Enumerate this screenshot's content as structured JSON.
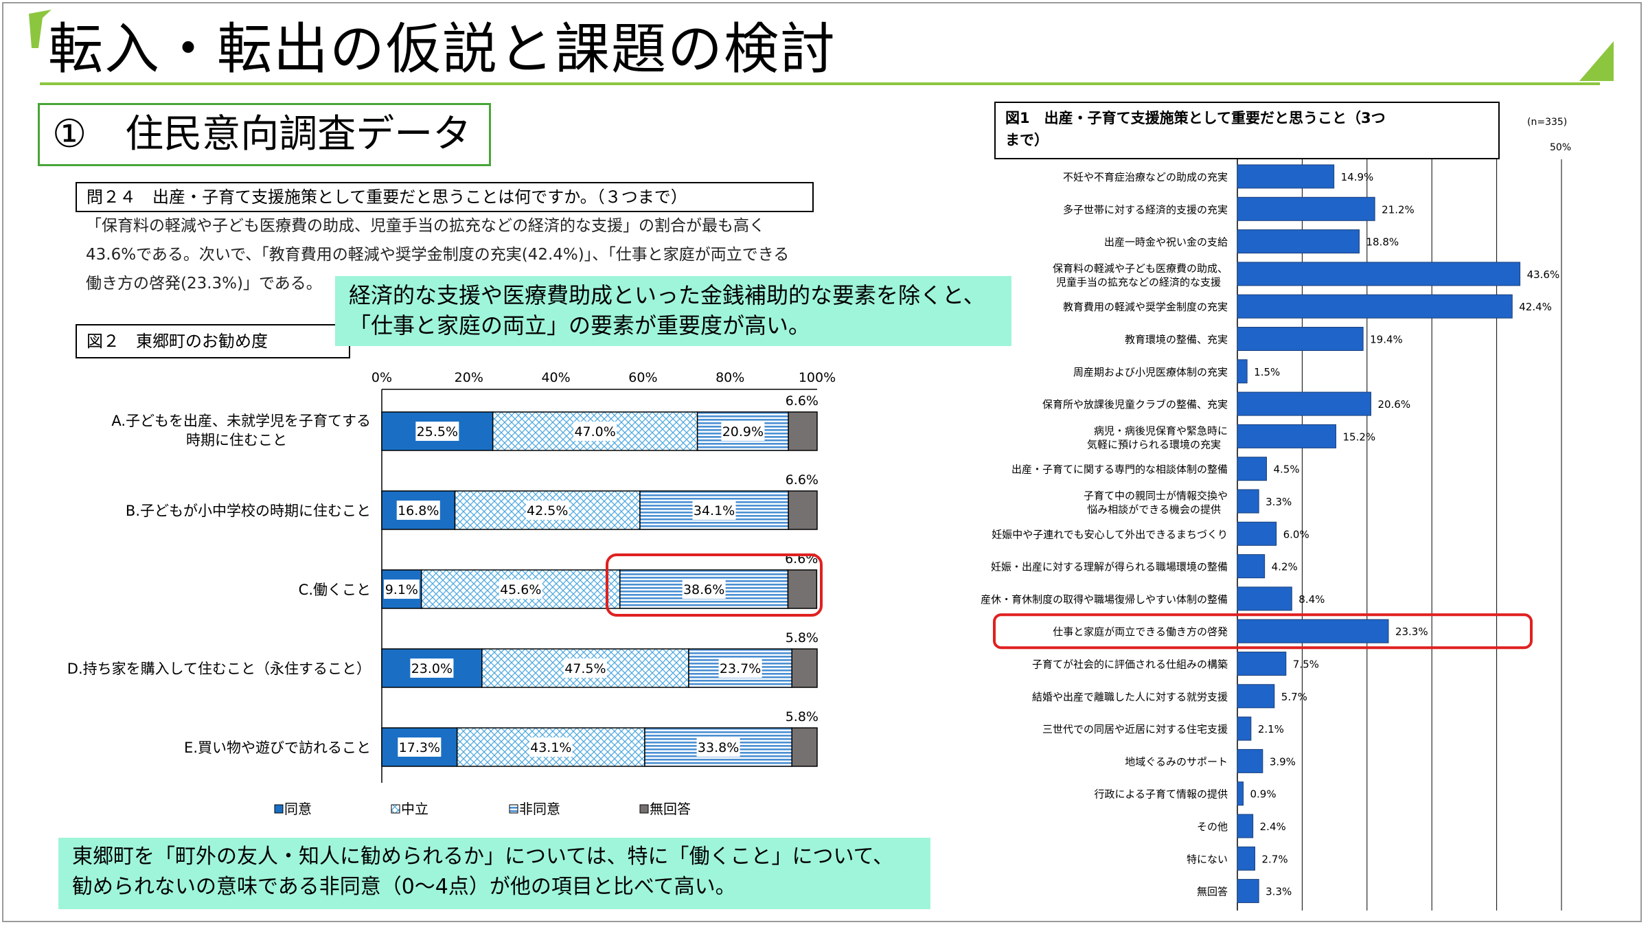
{
  "slide": {
    "title": "転入・転出の仮説と課題の検討",
    "subtitle": "①　住民意向調査データ",
    "question": "問２４　出産・子育て支援施策として重要だと思うことは何ですか。（３つまで）",
    "body_lines": [
      "「保育料の軽減や子ども医療費の助成、児童手当の拡充などの経済的な支援」の割合が最も高く",
      "43.6%である。次いで、「教育費用の軽減や奨学金制度の充実(42.4%)」、「仕事と家庭が両立できる",
      "働き方の啓発(23.3%)」である。"
    ],
    "callout1_lines": [
      "経済的な支援や医療費助成といった金銭補助的な要素を除くと、",
      "「仕事と家庭の両立」の要素が重要度が高い。"
    ],
    "callout2_lines": [
      "東郷町を「町外の友人・知人に勧められるか」については、特に「働くこと」について、",
      "勧められないの意味である非同意（0～4点）が他の項目と比べて高い。"
    ],
    "fig2_title": "図２　東郷町のお勧め度",
    "fig1_title_lines": [
      "図1　出産・子育て支援施策として重要だと思うこと（3つ",
      "まで）"
    ],
    "n_label": "(n=335)",
    "axis_max_label": "50%"
  },
  "colors": {
    "agree": "#1a6fc4",
    "neutral": "#9fd3f0",
    "disagree": "#5b9bd5",
    "no_answer": "#767171",
    "highlight": "#e02020",
    "bar_fill": "#1f64c8",
    "callout_bg": "#9ff5d9",
    "title_accent": "#8cc63f"
  },
  "chart_data": [
    {
      "type": "bar",
      "orientation": "horizontal",
      "stacked": true,
      "title": "図２　東郷町のお勧め度",
      "categories": [
        "A.子どもを出産、未就学児を子育てする|時期に住むこと",
        "B.子どもが小中学校の時期に住むこと",
        "C.働くこと",
        "D.持ち家を購入して住むこと（永住すること）",
        "E.買い物や遊びで訪れること"
      ],
      "series": [
        {
          "name": "同意",
          "values": [
            25.5,
            16.8,
            9.1,
            23.0,
            17.3
          ],
          "labels": [
            "25.5%",
            "16.8%",
            "9.1%",
            "23.0%",
            "17.3%"
          ]
        },
        {
          "name": "中立",
          "values": [
            47.0,
            42.5,
            45.6,
            47.5,
            43.1
          ],
          "labels": [
            "47.0%",
            "42.5%",
            "45.6%",
            "47.5%",
            "43.1%"
          ]
        },
        {
          "name": "非同意",
          "values": [
            20.9,
            34.1,
            38.6,
            23.7,
            33.8
          ],
          "labels": [
            "20.9%",
            "34.1%",
            "38.6%",
            "23.7%",
            "33.8%"
          ]
        },
        {
          "name": "無回答",
          "values": [
            6.6,
            6.6,
            6.6,
            5.8,
            5.8
          ],
          "labels": [
            "6.6%",
            "6.6%",
            "6.6%",
            "5.8%",
            "5.8%"
          ]
        }
      ],
      "xticks": [
        "0%",
        "20%",
        "40%",
        "60%",
        "80%",
        "100%"
      ],
      "xlim": [
        0,
        100
      ],
      "legend": "bottom",
      "highlight_category": "C.働くこと"
    },
    {
      "type": "bar",
      "orientation": "horizontal",
      "title": "図1　出産・子育て支援施策として重要だと思うこと（3つまで）",
      "categories": [
        "不妊や不育症治療などの助成の充実",
        "多子世帯に対する経済的支援の充実",
        "出産一時金や祝い金の支給",
        "保育料の軽減や子ども医療費の助成、|児童手当の拡充などの経済的な支援",
        "教育費用の軽減や奨学金制度の充実",
        "教育環境の整備、充実",
        "周産期および小児医療体制の充実",
        "保育所や放課後児童クラブの整備、充実",
        "病児・病後児保育や緊急時に|気軽に預けられる環境の充実",
        "出産・子育てに関する専門的な相談体制の整備",
        "子育て中の親同士が情報交換や|悩み相談ができる機会の提供",
        "妊娠中や子連れでも安心して外出できるまちづくり",
        "妊娠・出産に対する理解が得られる職場環境の整備",
        "産休・育休制度の取得や職場復帰しやすい体制の整備",
        "仕事と家庭が両立できる働き方の啓発",
        "子育てが社会的に評価される仕組みの構築",
        "結婚や出産で離職した人に対する就労支援",
        "三世代での同居や近居に対する住宅支援",
        "地域ぐるみのサポート",
        "行政による子育て情報の提供",
        "その他",
        "特にない",
        "無回答"
      ],
      "values": [
        14.9,
        21.2,
        18.8,
        43.6,
        42.4,
        19.4,
        1.5,
        20.6,
        15.2,
        4.5,
        3.3,
        6.0,
        4.2,
        8.4,
        23.3,
        7.5,
        5.7,
        2.1,
        3.9,
        0.9,
        2.4,
        2.7,
        3.3
      ],
      "labels": [
        "14.9%",
        "21.2%",
        "18.8%",
        "43.6%",
        "42.4%",
        "19.4%",
        "1.5%",
        "20.6%",
        "15.2%",
        "4.5%",
        "3.3%",
        "6.0%",
        "4.2%",
        "8.4%",
        "23.3%",
        "7.5%",
        "5.7%",
        "2.1%",
        "3.9%",
        "0.9%",
        "2.4%",
        "2.7%",
        "3.3%"
      ],
      "xlim": [
        0,
        50
      ],
      "grid": true,
      "highlight_category": "仕事と家庭が両立できる働き方の啓発"
    }
  ]
}
